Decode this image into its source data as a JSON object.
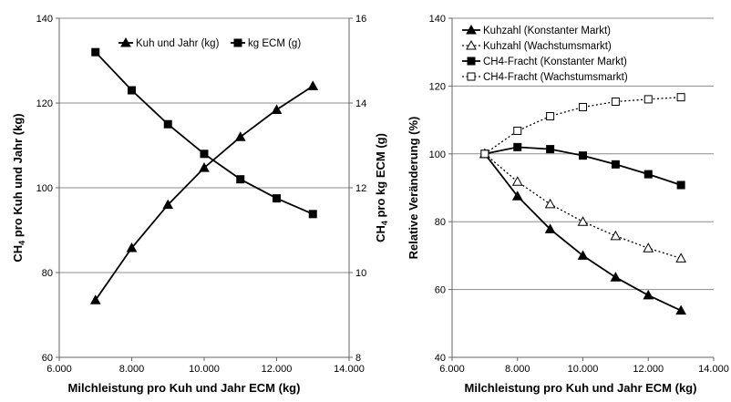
{
  "chart_data": [
    {
      "type": "line",
      "xlabel": "Milchleistung pro Kuh und Jahr ECM (kg)",
      "ylabel": "CH4 pro Kuh und Jahr (kg)",
      "ylabel_main": "CH",
      "ylabel_sub": "4",
      "ylabel_rest": " pro Kuh und Jahr (kg)",
      "y2label": "CH4 pro kg ECM (g)",
      "y2label_main": "CH",
      "y2label_sub": "4",
      "y2label_rest": " pro kg ECM (g)",
      "xlim": [
        6000,
        14000
      ],
      "ylim": [
        60,
        140
      ],
      "y2lim": [
        8,
        16
      ],
      "x_ticks": [
        "6.000",
        "8.000",
        "10.000",
        "12.000",
        "14.000"
      ],
      "y_ticks": [
        "60",
        "80",
        "100",
        "120",
        "140"
      ],
      "y2_ticks": [
        "8",
        "10",
        "12",
        "14",
        "16"
      ],
      "grid": "horizontal",
      "legend_position": "top",
      "x": [
        7000,
        8000,
        9000,
        10000,
        11000,
        12000,
        13000
      ],
      "series": [
        {
          "name": "Kuh und Jahr (kg)",
          "axis": "left",
          "marker": "triangle-filled",
          "line": "solid",
          "values": [
            73.5,
            85.8,
            96.0,
            104.7,
            112.0,
            118.4,
            124.0
          ]
        },
        {
          "name": "kg ECM (g)",
          "axis": "right",
          "marker": "square-filled",
          "line": "solid",
          "values": [
            15.2,
            14.3,
            13.5,
            12.8,
            12.2,
            11.75,
            11.38
          ]
        }
      ]
    },
    {
      "type": "line",
      "xlabel": "Milchleistung pro Kuh und Jahr ECM (kg)",
      "ylabel": "Relative Veränderung  (%)",
      "xlim": [
        6000,
        14000
      ],
      "ylim": [
        40,
        140
      ],
      "x_ticks": [
        "6.000",
        "8.000",
        "10.000",
        "12.000",
        "14.000"
      ],
      "y_ticks": [
        "40",
        "60",
        "80",
        "100",
        "120",
        "140"
      ],
      "grid": "horizontal",
      "legend_position": "top",
      "x": [
        7000,
        8000,
        9000,
        10000,
        11000,
        12000,
        13000
      ],
      "series": [
        {
          "name": "Kuhzahl (Konstanter Markt)",
          "marker": "triangle-filled",
          "line": "solid",
          "values": [
            100,
            87.5,
            77.8,
            70.0,
            63.6,
            58.3,
            53.8
          ]
        },
        {
          "name": "Kuhzahl (Wachstumsmarkt)",
          "marker": "triangle-open",
          "line": "dotted",
          "values": [
            100,
            91.8,
            85.2,
            80.0,
            75.8,
            72.2,
            69.2
          ]
        },
        {
          "name": "CH4-Fracht (Konstanter Markt)",
          "marker": "square-filled",
          "line": "solid",
          "values": [
            100,
            102.0,
            101.4,
            99.5,
            96.9,
            94.0,
            90.8
          ]
        },
        {
          "name": "CH4-Fracht (Wachstumsmarkt)",
          "marker": "square-open",
          "line": "dotted",
          "values": [
            100,
            106.8,
            111.1,
            113.8,
            115.4,
            116.1,
            116.7
          ]
        }
      ]
    }
  ]
}
